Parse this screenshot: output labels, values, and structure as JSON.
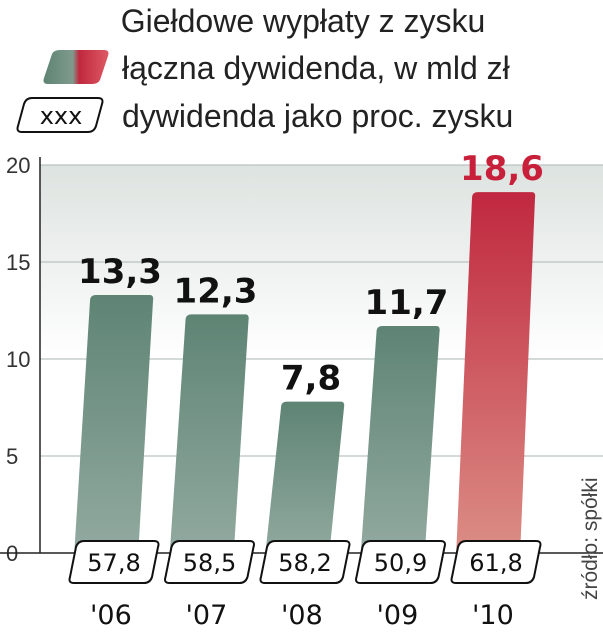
{
  "chart_data": {
    "type": "bar",
    "title": "Giełdowe wypłaty z zysku",
    "legend": [
      {
        "label": "łączna dywidenda, w mld zł",
        "kind": "bar-swatch"
      },
      {
        "label": "dywidenda jako proc. zysku",
        "kind": "box",
        "box_text": "xxx"
      }
    ],
    "categories": [
      "'06",
      "'07",
      "'08",
      "'09",
      "'10"
    ],
    "series": [
      {
        "name": "łączna dywidenda, w mld zł",
        "values": [
          13.3,
          12.3,
          7.8,
          11.7,
          18.6
        ],
        "labels": [
          "13,3",
          "12,3",
          "7,8",
          "11,7",
          "18,6"
        ]
      },
      {
        "name": "dywidenda jako proc. zysku",
        "values": [
          57.8,
          58.5,
          58.2,
          50.9,
          61.8
        ],
        "labels": [
          "57,8",
          "58,5",
          "58,2",
          "50,9",
          "61,8"
        ]
      }
    ],
    "ylim": [
      0,
      20
    ],
    "yticks": [
      "0",
      "5",
      "10",
      "15",
      "20"
    ],
    "highlight_index": 4,
    "source": "źródło: spółki",
    "colors": {
      "bar_top": "#5e8474",
      "bar_bottom": "#93aaa1",
      "highlight_top": "#c0283f",
      "highlight_bottom": "#dc8f86",
      "highlight_label": "#c8203a",
      "label": "#111111",
      "band": "#dfe5e2"
    }
  }
}
